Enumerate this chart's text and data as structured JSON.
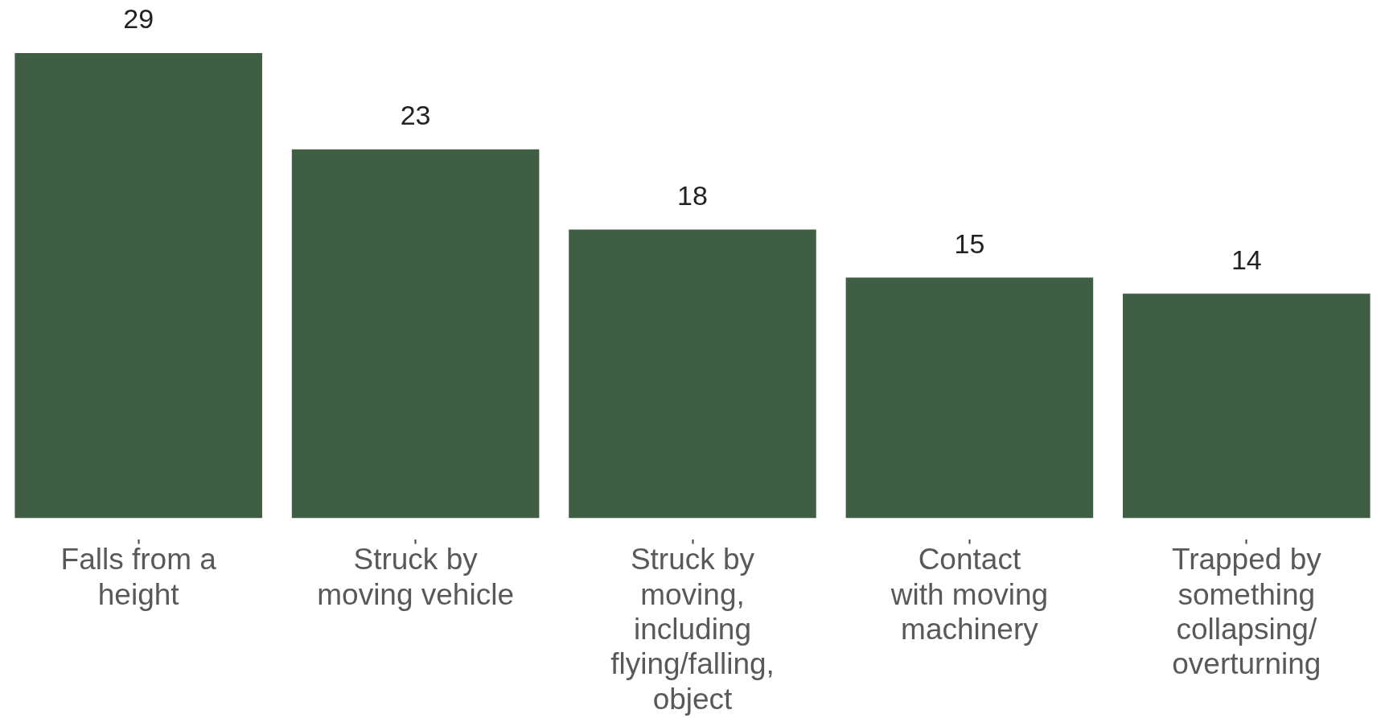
{
  "chart_data": {
    "type": "bar",
    "categories": [
      "Falls from a\nheight",
      "Struck by\nmoving vehicle",
      "Struck by\nmoving,\nincluding\nflying/falling,\nobject",
      "Contact\nwith moving\nmachinery",
      "Trapped by\nsomething\ncollapsing/\noverturning"
    ],
    "values": [
      29,
      23,
      18,
      15,
      14
    ],
    "color": "#3f5e44",
    "data_labels": true
  }
}
